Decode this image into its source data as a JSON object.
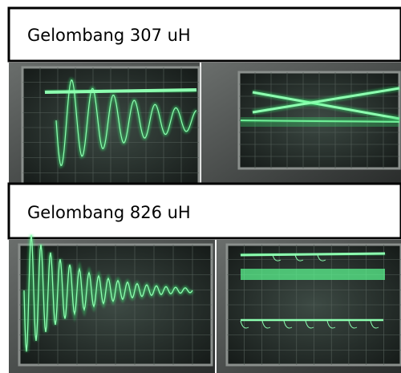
{
  "sections": [
    {
      "label": "Gelombang 307 uH"
    },
    {
      "label": "Gelombang 826 uH"
    }
  ]
}
